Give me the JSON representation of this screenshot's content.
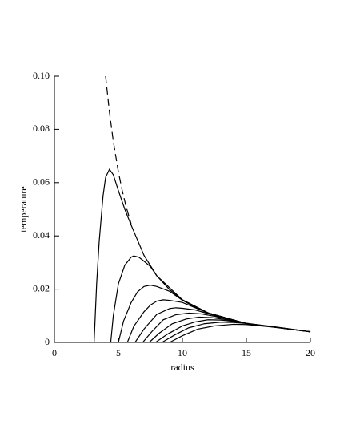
{
  "chart_data": {
    "type": "line",
    "x_label": "radius",
    "y_label": "temperature",
    "xlim": [
      0,
      20
    ],
    "ylim": [
      0,
      0.1
    ],
    "xticks": [
      0,
      5,
      10,
      15,
      20
    ],
    "yticks": [
      0,
      0.02,
      0.04,
      0.06,
      0.08,
      {
        "value": 0.1,
        "label": "0.10"
      }
    ],
    "series": [
      {
        "color": "#000000",
        "dashed": true,
        "x": [
          4,
          4.3,
          4.6,
          5,
          5.3,
          5.6,
          6
        ],
        "values": [
          0.1,
          0.0865,
          0.0756,
          0.064,
          0.057,
          0.051,
          0.0444
        ]
      },
      {
        "color": "#000000",
        "x": [
          3.1,
          3.3,
          3.5,
          3.8,
          4.0,
          4.3,
          4.6,
          5.0,
          5.5,
          6,
          7,
          8,
          10,
          12,
          15,
          20
        ],
        "values": [
          0,
          0.022,
          0.038,
          0.055,
          0.062,
          0.065,
          0.063,
          0.057,
          0.05,
          0.044,
          0.0327,
          0.025,
          0.016,
          0.0111,
          0.0071,
          0.004
        ]
      },
      {
        "color": "#000000",
        "x": [
          4.4,
          4.6,
          5,
          5.5,
          6,
          6.2,
          6.6,
          7,
          7.5,
          8,
          9,
          10,
          12,
          15,
          20
        ],
        "values": [
          0,
          0.01,
          0.022,
          0.029,
          0.032,
          0.0325,
          0.032,
          0.0305,
          0.0285,
          0.025,
          0.0198,
          0.016,
          0.0111,
          0.0071,
          0.004
        ]
      },
      {
        "color": "#000000",
        "x": [
          5.0,
          5.4,
          6,
          6.5,
          7,
          7.5,
          8,
          9,
          10,
          11,
          12,
          15,
          20
        ],
        "values": [
          0,
          0.008,
          0.015,
          0.019,
          0.021,
          0.0215,
          0.021,
          0.0192,
          0.0158,
          0.0132,
          0.0111,
          0.0071,
          0.004
        ]
      },
      {
        "color": "#000000",
        "x": [
          5.7,
          6.2,
          7,
          7.5,
          8,
          8.5,
          9,
          10,
          11,
          12,
          15,
          20
        ],
        "values": [
          0,
          0.006,
          0.0115,
          0.014,
          0.0155,
          0.016,
          0.0158,
          0.015,
          0.013,
          0.011,
          0.0071,
          0.004
        ]
      },
      {
        "color": "#000000",
        "x": [
          6.3,
          7,
          8,
          9,
          9.5,
          10,
          11,
          12,
          13,
          15,
          20
        ],
        "values": [
          0,
          0.005,
          0.0105,
          0.0127,
          0.013,
          0.0128,
          0.0122,
          0.0108,
          0.0094,
          0.0071,
          0.004
        ]
      },
      {
        "color": "#000000",
        "x": [
          6.9,
          7.6,
          8.5,
          9.5,
          10.5,
          11.5,
          12.5,
          14,
          15,
          20
        ],
        "values": [
          0,
          0.004,
          0.0085,
          0.0104,
          0.011,
          0.0107,
          0.0098,
          0.0082,
          0.0071,
          0.004
        ]
      },
      {
        "color": "#000000",
        "x": [
          7.4,
          8.2,
          9.2,
          10.3,
          11.3,
          12.3,
          13.5,
          15,
          20
        ],
        "values": [
          0,
          0.0035,
          0.007,
          0.0088,
          0.0095,
          0.0093,
          0.0085,
          0.0071,
          0.004
        ]
      },
      {
        "color": "#000000",
        "x": [
          7.9,
          8.8,
          10,
          11,
          12,
          13,
          14,
          15,
          20
        ],
        "values": [
          0,
          0.003,
          0.0062,
          0.0077,
          0.0085,
          0.0084,
          0.0079,
          0.0072,
          0.004
        ]
      },
      {
        "color": "#000000",
        "x": [
          8.4,
          9.4,
          10.5,
          11.7,
          13,
          14,
          15,
          17,
          20
        ],
        "values": [
          0,
          0.0028,
          0.0055,
          0.007,
          0.0076,
          0.0075,
          0.0071,
          0.006,
          0.004
        ]
      },
      {
        "color": "#000000",
        "x": [
          9,
          10,
          11.2,
          12.5,
          14,
          15,
          17,
          20
        ],
        "values": [
          0,
          0.0025,
          0.005,
          0.0062,
          0.0068,
          0.0067,
          0.0058,
          0.004
        ]
      }
    ]
  }
}
